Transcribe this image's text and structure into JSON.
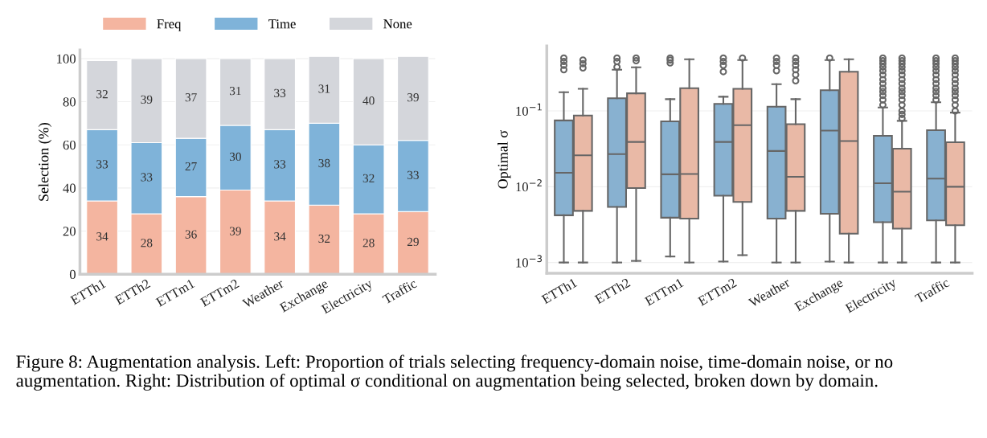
{
  "chart_data": [
    {
      "type": "bar",
      "stacked": true,
      "ylabel": "Selection (%)",
      "categories": [
        "ETTh1",
        "ETTh2",
        "ETTm1",
        "ETTm2",
        "Weather",
        "Exchange",
        "Electricity",
        "Traffic"
      ],
      "series": [
        {
          "name": "Freq",
          "color": "#f4b5a0",
          "values": [
            34,
            28,
            36,
            39,
            34,
            32,
            28,
            29
          ]
        },
        {
          "name": "Time",
          "color": "#7fb3d9",
          "values": [
            33,
            33,
            27,
            30,
            33,
            38,
            32,
            33
          ]
        },
        {
          "name": "None",
          "color": "#d4d6db",
          "values": [
            32,
            39,
            37,
            31,
            33,
            31,
            40,
            39
          ]
        }
      ],
      "data_labels": true,
      "ylim": [
        0,
        104
      ],
      "yticks": [
        0,
        20,
        40,
        60,
        80,
        100
      ],
      "grid": "y",
      "legend": "top",
      "annotations": [
        "Figure 8: Augmentation analysis. Left: Proportion of trials selecting frequency-domain noise, time-domain noise, or no augmentation. Right: Distribution of optimal σ conditional on augmentation being selected, broken down by domain."
      ]
    },
    {
      "type": "box",
      "ylabel": "Optimal σ",
      "log": true,
      "categories": [
        "ETTh1",
        "ETTh2",
        "ETTm1",
        "ETTm2",
        "Weather",
        "Exchange",
        "Electricity",
        "Traffic"
      ],
      "ylim": [
        0.00072,
        0.72
      ],
      "yticks": [
        {
          "value": 0.001,
          "label": "10$^{−3}$"
        },
        {
          "value": 0.01,
          "label": "10$^{−2}$"
        },
        {
          "value": 0.1,
          "label": "10$^{−1}$"
        }
      ],
      "grid": "y",
      "series": [
        {
          "color": "#88b1d0",
          "boxes": [
            {
              "low": 0.001,
              "q1": 0.0042,
              "median": 0.0153,
              "q3": 0.075,
              "high": 0.177,
              "outliers": [
                0.35,
                0.4,
                0.45,
                0.5
              ]
            },
            {
              "low": 0.001,
              "q1": 0.0054,
              "median": 0.027,
              "q3": 0.147,
              "high": 0.35,
              "outliers": [
                0.38,
                0.45,
                0.5
              ]
            },
            {
              "low": 0.0012,
              "q1": 0.0039,
              "median": 0.0146,
              "q3": 0.073,
              "high": 0.143,
              "outliers": [
                0.43,
                0.47,
                0.5
              ]
            },
            {
              "low": 0.00103,
              "q1": 0.0076,
              "median": 0.039,
              "q3": 0.124,
              "high": 0.154,
              "outliers": [
                0.33,
                0.4,
                0.45,
                0.5
              ]
            },
            {
              "low": 0.001,
              "q1": 0.0038,
              "median": 0.0296,
              "q3": 0.114,
              "high": 0.226,
              "outliers": [
                0.34,
                0.4,
                0.45,
                0.5
              ]
            },
            {
              "low": 0.00103,
              "q1": 0.0044,
              "median": 0.055,
              "q3": 0.188,
              "high": 0.47,
              "outliers": [
                0.5
              ]
            },
            {
              "low": 0.001,
              "q1": 0.0034,
              "median": 0.0111,
              "q3": 0.047,
              "high": 0.111,
              "outliers": [
                0.12,
                0.14,
                0.16,
                0.18,
                0.2,
                0.23,
                0.26,
                0.3,
                0.34,
                0.38,
                0.42,
                0.46,
                0.5
              ]
            },
            {
              "low": 0.001,
              "q1": 0.0036,
              "median": 0.0128,
              "q3": 0.0557,
              "high": 0.13,
              "outliers": [
                0.14,
                0.16,
                0.18,
                0.2,
                0.23,
                0.26,
                0.3,
                0.34,
                0.38,
                0.42,
                0.46,
                0.5
              ]
            }
          ]
        },
        {
          "color": "#e9b9a6",
          "boxes": [
            {
              "low": 0.001,
              "q1": 0.0048,
              "median": 0.026,
              "q3": 0.087,
              "high": 0.196,
              "outliers": [
                0.37,
                0.42,
                0.47
              ]
            },
            {
              "low": 0.00105,
              "q1": 0.0096,
              "median": 0.039,
              "q3": 0.171,
              "high": 0.377,
              "outliers": [
                0.46,
                0.5
              ]
            },
            {
              "low": 0.001,
              "q1": 0.0038,
              "median": 0.0147,
              "q3": 0.2,
              "high": 0.48
            },
            {
              "low": 0.00125,
              "q1": 0.0063,
              "median": 0.065,
              "q3": 0.196,
              "high": 0.47,
              "outliers": [
                0.5
              ]
            },
            {
              "low": 0.001,
              "q1": 0.0048,
              "median": 0.0135,
              "q3": 0.067,
              "high": 0.143,
              "outliers": [
                0.25,
                0.3,
                0.35,
                0.4,
                0.45,
                0.5
              ]
            },
            {
              "low": 0.001,
              "q1": 0.0024,
              "median": 0.04,
              "q3": 0.33,
              "high": 0.48
            },
            {
              "low": 0.001,
              "q1": 0.0028,
              "median": 0.0086,
              "q3": 0.0318,
              "high": 0.074,
              "outliers": [
                0.08,
                0.09,
                0.1,
                0.12,
                0.14,
                0.16,
                0.18,
                0.2,
                0.23,
                0.26,
                0.3,
                0.34,
                0.38,
                0.42,
                0.46,
                0.5
              ]
            },
            {
              "low": 0.001,
              "q1": 0.0031,
              "median": 0.01,
              "q3": 0.0387,
              "high": 0.095,
              "outliers": [
                0.1,
                0.12,
                0.14,
                0.16,
                0.18,
                0.2,
                0.23,
                0.26,
                0.3,
                0.34,
                0.38,
                0.42,
                0.46,
                0.5
              ]
            }
          ]
        }
      ]
    }
  ]
}
